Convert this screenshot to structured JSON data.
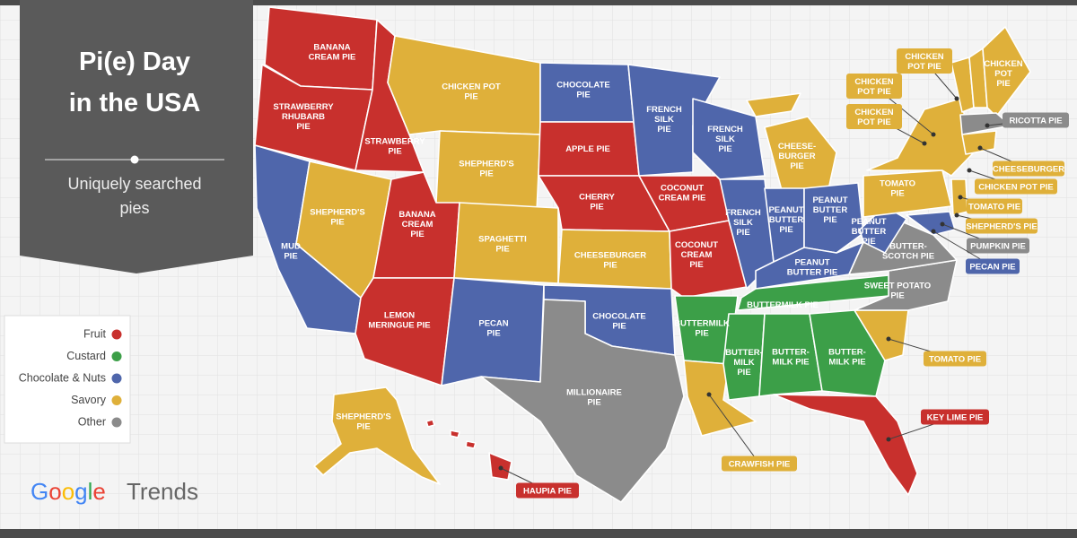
{
  "title": [
    "Pi(e) Day",
    "in the USA"
  ],
  "subtitle": [
    "Uniquely searched",
    "pies"
  ],
  "legend": [
    {
      "label": "Fruit",
      "color": "#c8302d"
    },
    {
      "label": "Custard",
      "color": "#3c9f48"
    },
    {
      "label": "Chocolate & Nuts",
      "color": "#4f66ab"
    },
    {
      "label": "Savory",
      "color": "#dfb03a"
    },
    {
      "label": "Other",
      "color": "#8b8b8b"
    }
  ],
  "states": [
    {
      "category": 0,
      "lines": [
        "BANANA",
        "CREAM PIE"
      ]
    },
    {
      "category": 0,
      "lines": [
        "STRAWBERRY",
        "RHUBARB",
        "PIE"
      ]
    },
    {
      "category": 0,
      "lines": [
        "STRAWBERRY",
        "PIE"
      ]
    },
    {
      "category": 3,
      "lines": [
        "CHICKEN POT",
        "PIE"
      ]
    },
    {
      "category": 3,
      "lines": [
        "SHEPHERD'S",
        "PIE"
      ]
    },
    {
      "category": 2,
      "lines": [
        "MUD",
        "PIE"
      ]
    },
    {
      "category": 3,
      "lines": [
        "SHEPHERD'S",
        "PIE"
      ]
    },
    {
      "category": 0,
      "lines": [
        "BANANA",
        "CREAM",
        "PIE"
      ]
    },
    {
      "category": 3,
      "lines": [
        "SPAGHETTI",
        "PIE"
      ]
    },
    {
      "category": 0,
      "lines": [
        "LEMON",
        "MERINGUE PIE"
      ]
    },
    {
      "category": 2,
      "lines": [
        "PECAN",
        "PIE"
      ]
    },
    {
      "category": 2,
      "lines": [
        "CHOCOLATE",
        "PIE"
      ]
    },
    {
      "category": 0,
      "lines": [
        "APPLE PIE"
      ]
    },
    {
      "category": 0,
      "lines": [
        "CHERRY",
        "PIE"
      ]
    },
    {
      "category": 3,
      "lines": [
        "CHEESEBURGER",
        "PIE"
      ]
    },
    {
      "category": 2,
      "lines": [
        "CHOCOLATE",
        "PIE"
      ]
    },
    {
      "category": 4,
      "lines": [
        "MILLIONAIRE",
        "PIE"
      ]
    },
    {
      "category": 2,
      "lines": [
        "FRENCH",
        "SILK",
        "PIE"
      ]
    },
    {
      "category": 0,
      "lines": [
        "COCONUT",
        "CREAM PIE"
      ]
    },
    {
      "category": 0,
      "lines": [
        "COCONUT",
        "CREAM",
        "PIE"
      ]
    },
    {
      "category": 1,
      "lines": [
        "BUTTERMILK",
        "PIE"
      ]
    },
    {
      "category": 3
    },
    {
      "category": 2,
      "lines": [
        "FRENCH",
        "SILK",
        "PIE"
      ]
    },
    {
      "category": 2,
      "lines": [
        "FRENCH",
        "SILK",
        "PIE"
      ]
    },
    {
      "category": 3,
      "lines": [
        "CHEESE-",
        "BURGER",
        "PIE"
      ]
    },
    {
      "category": 2,
      "lines": [
        "PEANUT",
        "BUTTER",
        "PIE"
      ]
    },
    {
      "category": 2,
      "lines": [
        "PEANUT",
        "BUTTER",
        "PIE"
      ]
    },
    {
      "category": 2,
      "lines": [
        "PEANUT",
        "BUTTER PIE"
      ]
    },
    {
      "category": 1,
      "lines": [
        "BUTTERMILK PIE"
      ]
    },
    {
      "category": 1,
      "lines": [
        "BUTTER-",
        "MILK",
        "PIE"
      ]
    },
    {
      "category": 1,
      "lines": [
        "BUTTER-",
        "MILK PIE"
      ]
    },
    {
      "category": 1,
      "lines": [
        "BUTTER-",
        "MILK PIE"
      ]
    },
    {
      "category": 0
    },
    {
      "category": 3
    },
    {
      "category": 4,
      "lines": [
        "SWEET POTATO",
        "PIE"
      ]
    },
    {
      "category": 4,
      "lines": [
        "BUTTER-",
        "SCOTCH PIE"
      ]
    },
    {
      "category": 2,
      "lines": [
        "PEANUT",
        "BUTTER",
        "PIE"
      ]
    },
    {
      "category": 3,
      "lines": [
        "TOMATO",
        "PIE"
      ]
    },
    {
      "category": 3
    },
    {
      "category": 3
    },
    {
      "category": 3
    },
    {
      "category": 3,
      "lines": [
        "CHICKEN",
        "POT",
        "PIE"
      ]
    },
    {
      "category": 4
    },
    {
      "category": 3
    },
    {
      "category": 3
    },
    {
      "category": 2
    },
    {
      "category": 3,
      "lines": [
        "SHEPHERD'S",
        "PIE"
      ]
    },
    {
      "category": 0
    },
    {
      "category": 3
    }
  ],
  "callouts": [
    {
      "category": 3,
      "lines": [
        "CHICKEN",
        "POT PIE"
      ]
    },
    {
      "category": 3,
      "lines": [
        "CHICKEN",
        "POT PIE"
      ]
    },
    {
      "category": 3,
      "lines": [
        "CHICKEN",
        "POT PIE"
      ]
    },
    {
      "category": 4,
      "lines": [
        "RICOTTA PIE"
      ]
    },
    {
      "category": 3,
      "lines": [
        "CHEESEBURGER"
      ]
    },
    {
      "category": 3,
      "lines": [
        "CHICKEN POT PIE"
      ]
    },
    {
      "category": 3,
      "lines": [
        "TOMATO PIE"
      ]
    },
    {
      "category": 3,
      "lines": [
        "SHEPHERD'S PIE"
      ]
    },
    {
      "category": 4,
      "lines": [
        "PUMPKIN PIE"
      ]
    },
    {
      "category": 2,
      "lines": [
        "PECAN PIE"
      ]
    },
    {
      "category": 3,
      "lines": [
        "TOMATO PIE"
      ]
    },
    {
      "category": 0,
      "lines": [
        "KEY LIME PIE"
      ]
    },
    {
      "category": 3,
      "lines": [
        "CRAWFISH PIE"
      ]
    },
    {
      "category": 0,
      "lines": [
        "HAUPIA PIE"
      ]
    }
  ],
  "brand": {
    "google": "Google",
    "trends": "Trends"
  }
}
